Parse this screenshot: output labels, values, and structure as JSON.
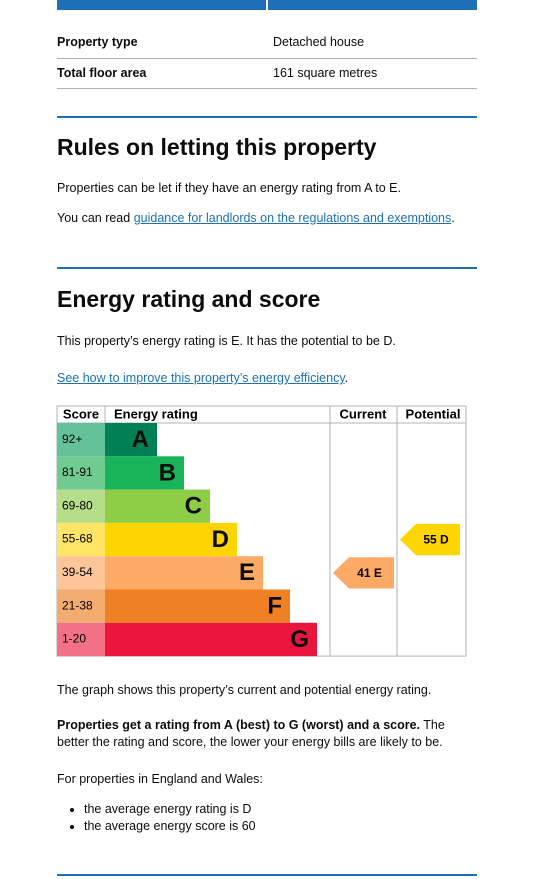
{
  "summary": {
    "rows": [
      [
        "Property type",
        "Detached house"
      ],
      [
        "Total floor area",
        "161 square metres"
      ]
    ]
  },
  "letting": {
    "heading": "Rules on letting this property",
    "text": "Properties can be let if they have an energy rating from A to E.",
    "link_prefix": "You can read ",
    "link": "guidance for landlords on the regulations and exemptions",
    "link_suffix": "."
  },
  "rating": {
    "heading": "Energy rating and score",
    "text": "This property’s energy rating is E. It has the potential to be D.",
    "link": "See how to improve this property’s energy efficiency",
    "link_suffix": "."
  },
  "graph": {
    "headers": [
      "Score",
      "Energy rating",
      "Current",
      "Potential"
    ],
    "bands": [
      {
        "range": "92+",
        "letter": "A"
      },
      {
        "range": "81-91",
        "letter": "B"
      },
      {
        "range": "69-80",
        "letter": "C"
      },
      {
        "range": "55-68",
        "letter": "D"
      },
      {
        "range": "39-54",
        "letter": "E"
      },
      {
        "range": "21-38",
        "letter": "F"
      },
      {
        "range": "1-20",
        "letter": "G"
      }
    ],
    "current": {
      "score": 41,
      "band": "E"
    },
    "potential": {
      "score": 55,
      "band": "D"
    }
  },
  "after": {
    "caption": "The graph shows this property’s current and potential energy rating.",
    "bold": "Properties get a rating from A (best) to G (worst) and a score.",
    "rest": " The better the rating and score, the lower your energy bills are likely to be.",
    "wales": "For properties in England and Wales:",
    "bullets": [
      "the average energy rating is D",
      "the average energy score is 60"
    ]
  }
}
